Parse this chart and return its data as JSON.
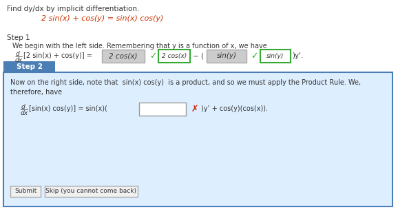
{
  "bg_color": "#ffffff",
  "title_text": "Find dy/dx by implicit differentiation.",
  "equation_color": "#cc3300",
  "step1_label": "Step 1",
  "step1_desc": "We begin with the left side. Remembering that y is a function of x, we have",
  "step2_bg": "#ddeeff",
  "step2_border": "#4a7eb5",
  "step2_label": "Step 2",
  "step2_label_bg": "#4a7eb5",
  "step2_label_color": "#ffffff",
  "step2_desc1": "Now on the right side, note that  sin(x) cos(y)  is a product, and so we must apply the Product Rule. We,",
  "step2_desc2": "therefore, have",
  "submit_label": "Submit",
  "skip_label": "Skip (you cannot come back)",
  "gray_box_color": "#cccccc",
  "green_border": "#33aa33",
  "check_color": "#33aa33",
  "x_color": "#cc2200",
  "text_color": "#333333"
}
